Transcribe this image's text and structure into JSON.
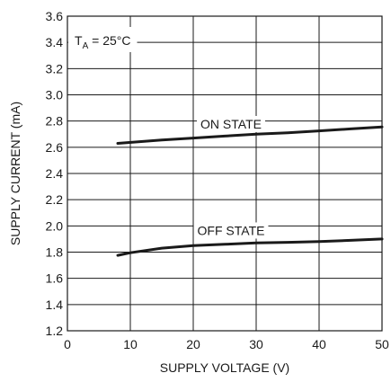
{
  "chart_data": {
    "type": "line",
    "xlabel": "SUPPLY VOLTAGE (V)",
    "ylabel": "SUPPLY CURRENT (mA)",
    "xlim": [
      0,
      50
    ],
    "ylim": [
      1.2,
      3.6
    ],
    "x_ticks": [
      0,
      10,
      20,
      30,
      40,
      50
    ],
    "y_ticks": [
      "1.2",
      "1.4",
      "1.6",
      "1.8",
      "2.0",
      "2.2",
      "2.4",
      "2.6",
      "2.8",
      "3.0",
      "3.2",
      "3.4",
      "3.6"
    ],
    "x_tick_labels": [
      "0",
      "10",
      "20",
      "30",
      "40",
      "50"
    ],
    "grid": true,
    "annotation": {
      "temp_main": "T",
      "temp_sub": "A",
      "temp_rest": " = 25°C"
    },
    "series": [
      {
        "name": "ON STATE",
        "x": [
          8,
          15,
          20,
          25,
          30,
          35,
          40,
          45,
          50
        ],
        "y": [
          2.63,
          2.655,
          2.67,
          2.685,
          2.7,
          2.71,
          2.725,
          2.74,
          2.755
        ]
      },
      {
        "name": "OFF STATE",
        "x": [
          8,
          10,
          15,
          20,
          25,
          30,
          35,
          40,
          45,
          50
        ],
        "y": [
          1.775,
          1.795,
          1.83,
          1.85,
          1.86,
          1.87,
          1.875,
          1.88,
          1.89,
          1.9
        ]
      }
    ]
  }
}
